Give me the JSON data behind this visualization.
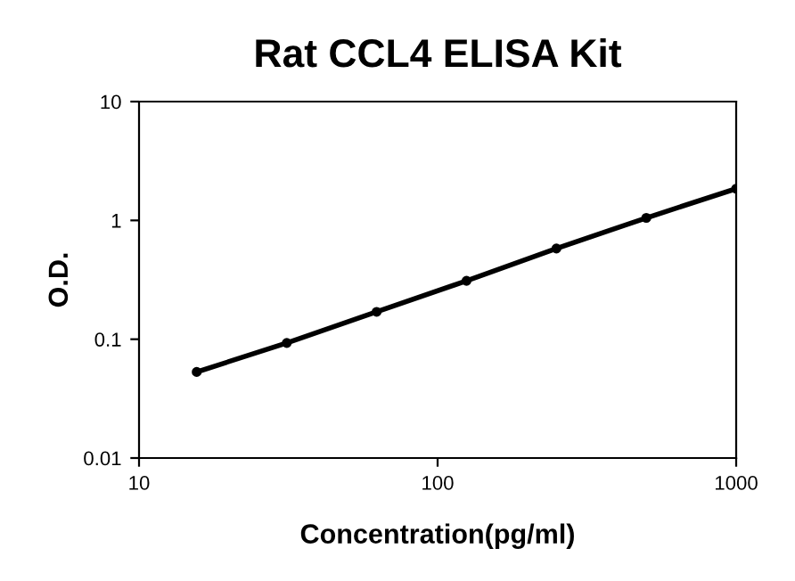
{
  "chart_data": {
    "type": "line",
    "title": "Rat CCL4 ELISA Kit",
    "xlabel": "Concentration(pg/ml)",
    "ylabel": "O.D.",
    "log": "xy",
    "x": [
      15.6,
      31.25,
      62.5,
      125,
      250,
      500,
      1000
    ],
    "series": [
      {
        "color": "#000000",
        "values": [
          0.053,
          0.093,
          0.17,
          0.31,
          0.58,
          1.05,
          1.85
        ]
      }
    ],
    "xlim": [
      10,
      1000
    ],
    "ylim": [
      0.01,
      10
    ],
    "xticks": [
      10,
      100,
      1000
    ],
    "yticks": [
      0.01,
      0.1,
      1,
      10
    ],
    "grid": false,
    "marker": "circle",
    "line_style": "solid"
  }
}
